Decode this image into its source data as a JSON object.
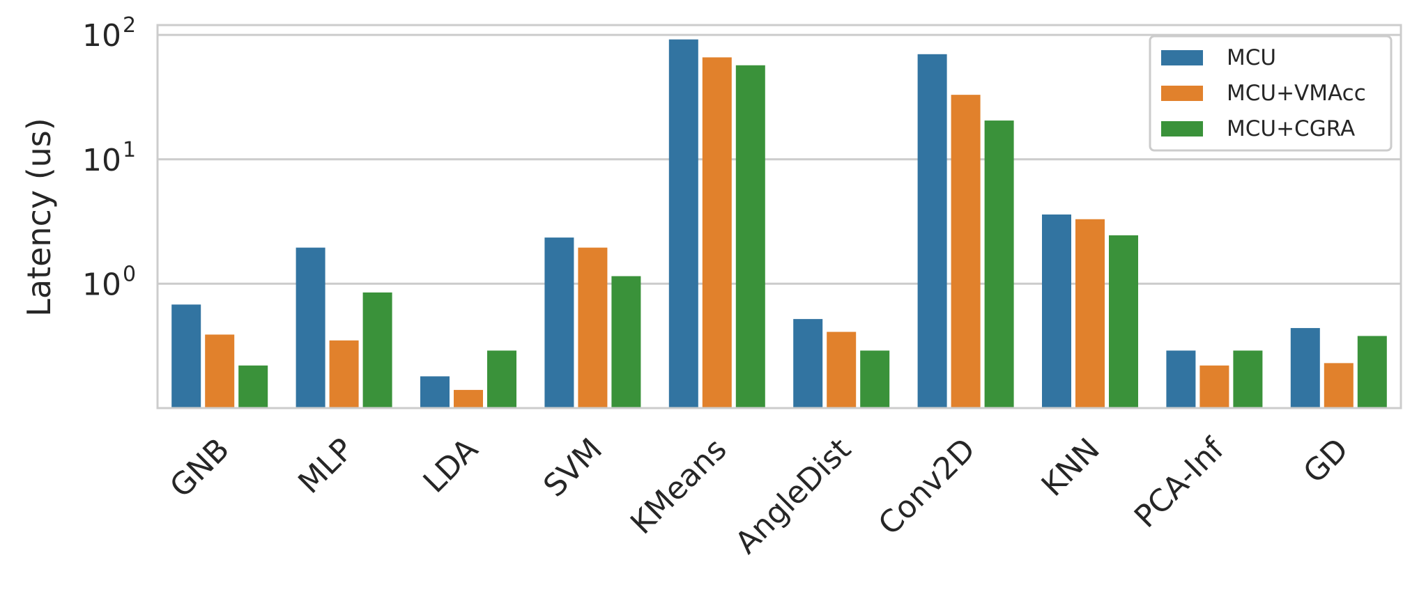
{
  "chart_data": {
    "type": "bar",
    "title": "",
    "xlabel": "",
    "ylabel": "Latency (us)",
    "yscale": "log",
    "ylim": [
      0.1,
      120
    ],
    "grid": "horizontal",
    "legend_position": "top-right",
    "categories": [
      "GNB",
      "MLP",
      "LDA",
      "SVM",
      "KMeans",
      "AngleDist",
      "Conv2D",
      "KNN",
      "PCA-Inf",
      "GD"
    ],
    "yticks": [
      {
        "base": "10",
        "exp": "0",
        "value": 1
      },
      {
        "base": "10",
        "exp": "1",
        "value": 10
      },
      {
        "base": "10",
        "exp": "2",
        "value": 100
      }
    ],
    "series": [
      {
        "name": "MCU",
        "color": "#3274a1",
        "values": [
          0.68,
          1.95,
          0.18,
          2.35,
          92,
          0.52,
          70,
          3.6,
          0.29,
          0.44
        ]
      },
      {
        "name": "MCU+VMAcc",
        "color": "#e1812c",
        "values": [
          0.39,
          0.35,
          0.14,
          1.95,
          66,
          0.41,
          33,
          3.3,
          0.22,
          0.23
        ]
      },
      {
        "name": "MCU+CGRA",
        "color": "#3a923a",
        "values": [
          0.22,
          0.85,
          0.29,
          1.15,
          57,
          0.29,
          20.5,
          2.45,
          0.29,
          0.38
        ]
      }
    ]
  }
}
